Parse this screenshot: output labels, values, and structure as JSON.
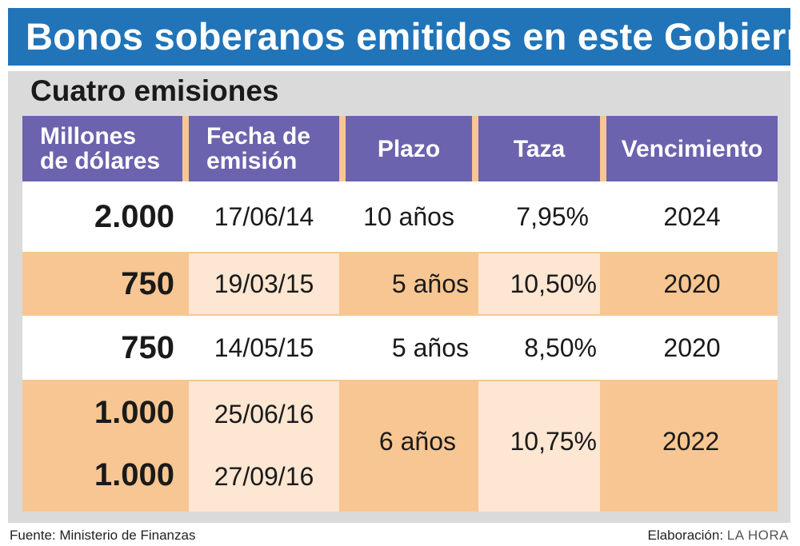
{
  "title": "Bonos soberanos emitidos en este Gobierno",
  "subtitle": "Cuatro emisiones",
  "headers": {
    "monto_line1": "Millones",
    "monto_line2": "de dólares",
    "fecha_line1": "Fecha de",
    "fecha_line2": "emisión",
    "plazo": "Plazo",
    "taza": "Taza",
    "vencimiento": "Vencimiento"
  },
  "rows": [
    {
      "monto": "2.000",
      "fecha": "17/06/14",
      "plazo": "10 años",
      "taza": "7,95%",
      "vencimiento": "2024"
    },
    {
      "monto": "750",
      "fecha": "19/03/15",
      "plazo": "5 años",
      "taza": "10,50%",
      "vencimiento": "2020"
    },
    {
      "monto": "750",
      "fecha": "14/05/15",
      "plazo": "5 años",
      "taza": "8,50%",
      "vencimiento": "2020"
    },
    {
      "monto": "1.000",
      "fecha": "25/06/16",
      "plazo": "6 años",
      "taza": "10,75%",
      "vencimiento": "2022"
    },
    {
      "monto": "1.000",
      "fecha": "27/09/16"
    }
  ],
  "footer": {
    "source": "Fuente: Ministerio de Finanzas",
    "credit_label": "Elaboración:",
    "credit_brand": "LA HORA"
  },
  "colors": {
    "title_bar": "#2174b8",
    "header": "#6b63ad",
    "row_orange": "#f7c692",
    "row_pale": "#fde6d2",
    "panel": "#dadada"
  },
  "chart_data": {
    "type": "table",
    "title": "Bonos soberanos emitidos en este Gobierno",
    "subtitle": "Cuatro emisiones",
    "columns": [
      "Millones de dólares",
      "Fecha de emisión",
      "Plazo",
      "Taza",
      "Vencimiento"
    ],
    "rows": [
      [
        "2.000",
        "17/06/14",
        "10 años",
        "7,95%",
        "2024"
      ],
      [
        "750",
        "19/03/15",
        "5 años",
        "10,50%",
        "2020"
      ],
      [
        "750",
        "14/05/15",
        "5 años",
        "8,50%",
        "2020"
      ],
      [
        "1.000",
        "25/06/16",
        "6 años",
        "10,75%",
        "2022"
      ],
      [
        "1.000",
        "27/09/16",
        "6 años",
        "10,75%",
        "2022"
      ]
    ]
  }
}
